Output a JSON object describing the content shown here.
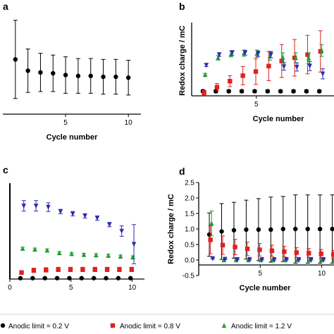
{
  "colors": {
    "s02": "#000000",
    "s08": "#e0211f",
    "s12": "#1e9e30",
    "s16": "#2c2cb0"
  },
  "legend": {
    "items": [
      {
        "key": "s02",
        "marker": "circle",
        "label": "Anodic limit = 0.2 V"
      },
      {
        "key": "s08",
        "marker": "square",
        "label": "Anodic limit = 0.8 V"
      },
      {
        "key": "s12",
        "marker": "triangle-up",
        "label": "Anodic limit = 1.2 V"
      }
    ]
  },
  "chart_data": [
    {
      "panel": "a",
      "type": "scatter",
      "xlabel": "Cycle number",
      "ylabel": "",
      "xticks": [
        5,
        10
      ],
      "xlim": [
        0,
        11
      ],
      "ylim": [
        0,
        1.2
      ],
      "series": [
        {
          "key": "s02",
          "marker": "circle",
          "x": [
            1,
            2,
            3,
            4,
            5,
            6,
            7,
            8,
            9,
            10
          ],
          "y": [
            0.63,
            0.5,
            0.48,
            0.47,
            0.45,
            0.44,
            0.44,
            0.43,
            0.43,
            0.42
          ],
          "err": [
            0.45,
            0.25,
            0.22,
            0.21,
            0.21,
            0.2,
            0.2,
            0.2,
            0.2,
            0.2
          ]
        }
      ]
    },
    {
      "panel": "b",
      "type": "scatter",
      "xlabel": "Cycle number",
      "ylabel": "Redox charge / mC",
      "xticks": [
        5
      ],
      "xlim": [
        0,
        11
      ],
      "ylim": [
        0,
        16
      ],
      "series": [
        {
          "key": "s02",
          "marker": "circle",
          "x": [
            1,
            2,
            3,
            4,
            5,
            6,
            7,
            8,
            9,
            10
          ],
          "y": [
            1,
            1,
            1,
            1,
            1,
            1,
            1,
            1,
            1,
            1
          ],
          "err": [
            0.3,
            0.3,
            0.3,
            0.3,
            0.3,
            0.3,
            0.3,
            0.3,
            0.3,
            0.3
          ]
        },
        {
          "key": "s08",
          "marker": "square",
          "x": [
            1,
            2,
            3,
            4,
            5,
            6,
            7,
            8,
            9,
            10
          ],
          "y": [
            0.7,
            1.9,
            3.2,
            4.4,
            5.3,
            6.5,
            7.6,
            8.3,
            9.0,
            9.7
          ],
          "err": [
            0.5,
            0.8,
            1.2,
            2.0,
            2.8,
            3.2,
            3.6,
            4.0,
            4.2,
            4.5
          ]
        },
        {
          "key": "s12",
          "marker": "triangle-up",
          "x": [
            1,
            2,
            3,
            4,
            5,
            6,
            7,
            8,
            9,
            10
          ],
          "y": [
            4.6,
            8.3,
            9.1,
            9.3,
            9.2,
            8.7,
            8.4,
            8.3,
            8.2,
            9.9
          ],
          "err": [
            0.3,
            0.5,
            0.6,
            0.7,
            0.8,
            0.9,
            1.0,
            1.1,
            1.2,
            1.3
          ]
        },
        {
          "key": "s16",
          "marker": "triangle-down",
          "x": [
            1,
            2,
            3,
            4,
            5,
            6,
            7,
            8,
            9,
            10
          ],
          "y": [
            6.7,
            9.0,
            9.4,
            9.4,
            9.2,
            9.0,
            6.4,
            6.3,
            6.5,
            4.8
          ],
          "err": [
            0.3,
            0.4,
            0.5,
            0.5,
            0.6,
            0.7,
            0.8,
            0.9,
            1.0,
            1.1
          ]
        }
      ]
    },
    {
      "panel": "c",
      "type": "scatter",
      "xlabel": "",
      "ylabel": "",
      "xticks": [
        0,
        5,
        10
      ],
      "xlim": [
        0,
        11
      ],
      "ylim": [
        0,
        2.2
      ],
      "series": [
        {
          "key": "s02",
          "marker": "circle",
          "x": [
            1,
            2,
            3,
            4,
            5,
            6,
            7,
            8,
            9,
            10
          ],
          "y": [
            0.02,
            0.02,
            0.02,
            0.02,
            0.02,
            0.02,
            0.02,
            0.02,
            0.02,
            0.02
          ],
          "err": [
            0.01,
            0.01,
            0.01,
            0.01,
            0.01,
            0.01,
            0.01,
            0.01,
            0.01,
            0.01
          ]
        },
        {
          "key": "s08",
          "marker": "square",
          "x": [
            1,
            2,
            3,
            4,
            5,
            6,
            7,
            8,
            9,
            10
          ],
          "y": [
            0.15,
            0.2,
            0.21,
            0.22,
            0.22,
            0.22,
            0.22,
            0.22,
            0.22,
            0.22
          ],
          "err": [
            0.04,
            0.05,
            0.05,
            0.05,
            0.05,
            0.05,
            0.05,
            0.05,
            0.05,
            0.05
          ]
        },
        {
          "key": "s12",
          "marker": "triangle-up",
          "x": [
            1,
            2,
            3,
            4,
            5,
            6,
            7,
            8,
            9,
            10
          ],
          "y": [
            0.7,
            0.68,
            0.66,
            0.6,
            0.58,
            0.56,
            0.55,
            0.54,
            0.52,
            0.5
          ],
          "err": [
            0.03,
            0.03,
            0.03,
            0.03,
            0.03,
            0.03,
            0.03,
            0.03,
            0.03,
            0.03
          ]
        },
        {
          "key": "s16",
          "marker": "triangle-down",
          "x": [
            1,
            2,
            3,
            4,
            5,
            6,
            7,
            8,
            9,
            10
          ],
          "y": [
            1.68,
            1.68,
            1.65,
            1.55,
            1.5,
            1.45,
            1.4,
            1.25,
            1.1,
            0.8
          ],
          "err": [
            0.12,
            0.12,
            0.1,
            0.05,
            0.05,
            0.05,
            0.05,
            0.05,
            0.12,
            0.45
          ]
        }
      ]
    },
    {
      "panel": "d",
      "type": "scatter",
      "xlabel": "Cycle number",
      "ylabel": "Redox charge / mC",
      "xticks": [
        5,
        10
      ],
      "yticks": [
        -0.5,
        0.0,
        0.5,
        1.0,
        1.5,
        2.0,
        2.5
      ],
      "yticklabels": [
        "-0.5",
        "0.0",
        "0.5",
        "1.0",
        "1.5",
        "2.0",
        "2.5"
      ],
      "xlim": [
        0,
        11
      ],
      "ylim": [
        -0.5,
        2.5
      ],
      "series": [
        {
          "key": "s02",
          "marker": "circle",
          "x": [
            1,
            2,
            3,
            4,
            5,
            6,
            7,
            8,
            9,
            10,
            11
          ],
          "y": [
            0.82,
            0.92,
            0.96,
            0.98,
            0.98,
            0.98,
            1.0,
            1.0,
            1.0,
            1.0,
            1.0
          ],
          "err": [
            0.7,
            0.9,
            0.9,
            0.95,
            1.0,
            1.05,
            1.05,
            1.1,
            1.1,
            1.1,
            1.1
          ]
        },
        {
          "key": "s08",
          "marker": "square",
          "x": [
            1,
            2,
            3,
            4,
            5,
            6,
            7,
            8,
            9,
            10,
            11
          ],
          "y": [
            0.65,
            0.48,
            0.42,
            0.36,
            0.33,
            0.3,
            0.27,
            0.24,
            0.22,
            0.2,
            0.18
          ],
          "err": [
            0.45,
            0.3,
            0.25,
            0.22,
            0.2,
            0.18,
            0.17,
            0.16,
            0.15,
            0.14,
            0.13
          ]
        },
        {
          "key": "s12",
          "marker": "triangle-up",
          "x": [
            1,
            2,
            3,
            4,
            5,
            6,
            7,
            8,
            9,
            10,
            11
          ],
          "y": [
            1.18,
            0.0,
            0.0,
            0.0,
            0.0,
            0.0,
            0.0,
            0.0,
            0.0,
            0.0,
            0.0
          ],
          "err": [
            0.4,
            0.02,
            0.02,
            0.02,
            0.02,
            0.02,
            0.02,
            0.02,
            0.02,
            0.02,
            0.02
          ]
        },
        {
          "key": "s16",
          "marker": "triangle-down",
          "x": [
            1,
            2,
            3,
            4,
            5,
            6,
            7,
            8,
            9,
            10,
            11
          ],
          "y": [
            0.05,
            0.03,
            0.02,
            0.02,
            0.02,
            0.02,
            0.02,
            0.02,
            0.02,
            0.02,
            0.02
          ],
          "err": [
            0.02,
            0.02,
            0.02,
            0.02,
            0.02,
            0.02,
            0.02,
            0.02,
            0.02,
            0.02,
            0.02
          ]
        }
      ]
    }
  ]
}
